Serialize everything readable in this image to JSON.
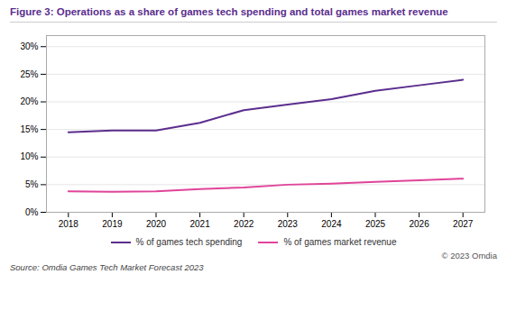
{
  "chart_data": {
    "type": "line",
    "title": "Figure 3: Operations as a share of games tech spending and total games market revenue",
    "x": [
      2018,
      2019,
      2020,
      2021,
      2022,
      2023,
      2024,
      2025,
      2026,
      2027
    ],
    "series": [
      {
        "name": "% of games tech spending",
        "color": "#5b2d8e",
        "values": [
          14.5,
          14.8,
          14.8,
          16.2,
          18.5,
          19.5,
          20.5,
          22.0,
          23.0,
          24.0
        ]
      },
      {
        "name": "% of games market revenue",
        "color": "#e0449a",
        "values": [
          3.8,
          3.7,
          3.8,
          4.2,
          4.5,
          5.0,
          5.2,
          5.5,
          5.8,
          6.1
        ]
      }
    ],
    "xlim": [
      2017.5,
      2027.5
    ],
    "xticks": [
      2018,
      2019,
      2020,
      2021,
      2022,
      2023,
      2024,
      2025,
      2026,
      2027
    ],
    "ylim": [
      0,
      32
    ],
    "yticks": [
      {
        "value": 0,
        "label": "0%"
      },
      {
        "value": 5,
        "label": "5%"
      },
      {
        "value": 10,
        "label": "10%"
      },
      {
        "value": 15,
        "label": "15%"
      },
      {
        "value": 20,
        "label": "20%"
      },
      {
        "value": 25,
        "label": "25%"
      },
      {
        "value": 30,
        "label": "30%"
      }
    ],
    "grid": true,
    "legend": "bottom",
    "annotations": [
      "© 2023 Omdia"
    ],
    "caption": "Source: Omdia Games Tech Market Forecast 2023"
  }
}
